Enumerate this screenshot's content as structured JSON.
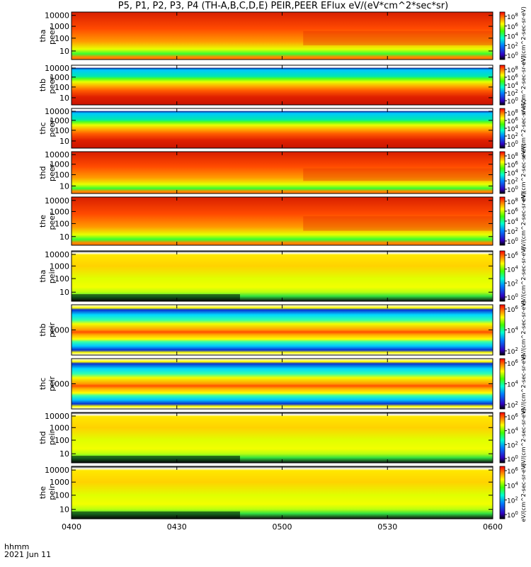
{
  "title": "P5, P1, P2, P3, P4 (TH-A,B,C,D,E) PEIR,PEER EFlux eV/(eV*cm^2*sec*sr)",
  "time_axis_label": "hhmm",
  "date_label": "2021 Jun 11",
  "chart_data": {
    "type": "heatmap",
    "x_ticks": [
      "0400",
      "0430",
      "0500",
      "0530",
      "0600"
    ],
    "x_range": [
      "04:00",
      "06:00"
    ],
    "y_scale": "log",
    "panels": [
      {
        "name": "tha peer",
        "ylabel": [
          "tha",
          "peer"
        ],
        "y_ticks": [
          "10000",
          "1000",
          "100",
          "10"
        ],
        "colorbar_ticks": [
          "10^8",
          "10^6",
          "10^4",
          "10^2",
          "10^0"
        ],
        "colorbar_label": "eV/(cm^2-sec-sr-eV)",
        "pattern": "electron"
      },
      {
        "name": "thb peer",
        "ylabel": [
          "thb",
          "peer"
        ],
        "y_ticks": [
          "10000",
          "1000",
          "100",
          "10"
        ],
        "colorbar_ticks": [
          "10^8",
          "10^6",
          "10^4",
          "10^2",
          "10^0"
        ],
        "colorbar_label": "eV/(cm^2-sec-sr-eV)",
        "pattern": "layered"
      },
      {
        "name": "thc peer",
        "ylabel": [
          "thc",
          "peer"
        ],
        "y_ticks": [
          "10000",
          "1000",
          "100",
          "10"
        ],
        "colorbar_ticks": [
          "10^8",
          "10^6",
          "10^4",
          "10^2",
          "10^0"
        ],
        "colorbar_label": "eV/(cm^2-sec-sr-eV)",
        "pattern": "layered"
      },
      {
        "name": "thd peer",
        "ylabel": [
          "thd",
          "peer"
        ],
        "y_ticks": [
          "10000",
          "1000",
          "100",
          "10"
        ],
        "colorbar_ticks": [
          "10^8",
          "10^6",
          "10^4",
          "10^2",
          "10^0"
        ],
        "colorbar_label": "eV/(cm^2-sec-sr-eV)",
        "pattern": "electron"
      },
      {
        "name": "the peer",
        "ylabel": [
          "the",
          "peer"
        ],
        "y_ticks": [
          "10000",
          "1000",
          "100",
          "10"
        ],
        "colorbar_ticks": [
          "10^8",
          "10^6",
          "10^4",
          "10^2",
          "10^0"
        ],
        "colorbar_label": "eV/(cm^2-sec-sr-eV)",
        "pattern": "electron"
      },
      {
        "name": "tha peir",
        "ylabel": [
          "tha",
          "peir"
        ],
        "y_ticks": [
          "10000",
          "1000",
          "100",
          "10"
        ],
        "colorbar_ticks": [
          "10^6",
          "10^4",
          "10^2",
          "10^0"
        ],
        "colorbar_label": "eV/(cm^2-sec-sr-eV)",
        "pattern": "ion"
      },
      {
        "name": "thb peir",
        "ylabel": [
          "thb",
          "peir"
        ],
        "y_ticks": [
          "1000"
        ],
        "colorbar_ticks": [
          "10^6",
          "10^4",
          "10^2"
        ],
        "colorbar_label": "eV/(cm^2-sec-sr-eV)",
        "pattern": "bands"
      },
      {
        "name": "thc peir",
        "ylabel": [
          "thc",
          "peir"
        ],
        "y_ticks": [
          "1000"
        ],
        "colorbar_ticks": [
          "10^6",
          "10^4",
          "10^2"
        ],
        "colorbar_label": "eV/(cm^2-sec-sr-eV)",
        "pattern": "bands"
      },
      {
        "name": "thd peir",
        "ylabel": [
          "thd",
          "peir"
        ],
        "y_ticks": [
          "10000",
          "1000",
          "100",
          "10"
        ],
        "colorbar_ticks": [
          "10^6",
          "10^4",
          "10^2",
          "10^0"
        ],
        "colorbar_label": "eV/(cm^2-sec-sr-eV)",
        "pattern": "ion"
      },
      {
        "name": "the peir",
        "ylabel": [
          "the",
          "peir"
        ],
        "y_ticks": [
          "10000",
          "1000",
          "100",
          "10"
        ],
        "colorbar_ticks": [
          "10^6",
          "10^4",
          "10^2",
          "10^0"
        ],
        "colorbar_label": "eV/(cm^2-sec-sr-eV)",
        "pattern": "ion"
      }
    ]
  }
}
